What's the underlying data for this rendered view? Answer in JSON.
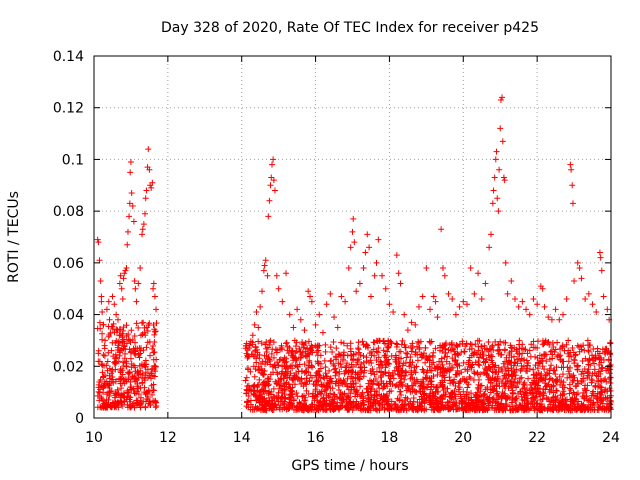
{
  "chart_data": {
    "type": "scatter",
    "title": "Day 328 of 2020, Rate Of TEC Index for receiver p425",
    "xlabel": "GPS time / hours",
    "ylabel": "ROTI / TECUs",
    "xlim": [
      10,
      24
    ],
    "ylim": [
      0,
      0.14
    ],
    "xticks": [
      "10",
      "12",
      "14",
      "16",
      "18",
      "20",
      "22",
      "24"
    ],
    "yticks": [
      "0",
      "0.02",
      "0.04",
      "0.06",
      "0.08",
      "0.1",
      "0.12",
      "0.14"
    ],
    "grid": true,
    "marker": "+",
    "color": "#ff0000",
    "series": [
      {
        "name": "p425",
        "points": [
          [
            10.1,
            0.069
          ],
          [
            10.12,
            0.068
          ],
          [
            10.15,
            0.061
          ],
          [
            10.18,
            0.053
          ],
          [
            10.2,
            0.047
          ],
          [
            10.2,
            0.045
          ],
          [
            10.22,
            0.041
          ],
          [
            10.25,
            0.036
          ],
          [
            10.3,
            0.03
          ],
          [
            10.35,
            0.042
          ],
          [
            10.4,
            0.045
          ],
          [
            10.42,
            0.038
          ],
          [
            10.5,
            0.047
          ],
          [
            10.55,
            0.044
          ],
          [
            10.6,
            0.04
          ],
          [
            10.65,
            0.038
          ],
          [
            10.7,
            0.052
          ],
          [
            10.72,
            0.055
          ],
          [
            10.75,
            0.05
          ],
          [
            10.78,
            0.046
          ],
          [
            10.8,
            0.054
          ],
          [
            10.82,
            0.056
          ],
          [
            10.85,
            0.057
          ],
          [
            10.88,
            0.058
          ],
          [
            10.9,
            0.067
          ],
          [
            10.92,
            0.072
          ],
          [
            10.95,
            0.078
          ],
          [
            10.97,
            0.083
          ],
          [
            10.98,
            0.095
          ],
          [
            11.0,
            0.099
          ],
          [
            11.02,
            0.087
          ],
          [
            11.05,
            0.082
          ],
          [
            11.08,
            0.076
          ],
          [
            11.1,
            0.053
          ],
          [
            11.12,
            0.05
          ],
          [
            11.15,
            0.045
          ],
          [
            11.2,
            0.052
          ],
          [
            11.25,
            0.058
          ],
          [
            11.3,
            0.071
          ],
          [
            11.32,
            0.073
          ],
          [
            11.35,
            0.075
          ],
          [
            11.38,
            0.079
          ],
          [
            11.4,
            0.085
          ],
          [
            11.42,
            0.088
          ],
          [
            11.45,
            0.097
          ],
          [
            11.47,
            0.104
          ],
          [
            11.5,
            0.096
          ],
          [
            11.52,
            0.09
          ],
          [
            11.55,
            0.089
          ],
          [
            11.58,
            0.091
          ],
          [
            11.6,
            0.05
          ],
          [
            11.62,
            0.052
          ],
          [
            11.65,
            0.047
          ],
          [
            11.68,
            0.042
          ],
          [
            14.2,
            0.028
          ],
          [
            14.3,
            0.032
          ],
          [
            14.35,
            0.036
          ],
          [
            14.4,
            0.041
          ],
          [
            14.45,
            0.035
          ],
          [
            14.5,
            0.043
          ],
          [
            14.55,
            0.049
          ],
          [
            14.6,
            0.057
          ],
          [
            14.62,
            0.059
          ],
          [
            14.65,
            0.061
          ],
          [
            14.7,
            0.055
          ],
          [
            14.72,
            0.078
          ],
          [
            14.75,
            0.084
          ],
          [
            14.78,
            0.09
          ],
          [
            14.8,
            0.093
          ],
          [
            14.82,
            0.098
          ],
          [
            14.85,
            0.1
          ],
          [
            14.87,
            0.092
          ],
          [
            14.9,
            0.088
          ],
          [
            14.95,
            0.055
          ],
          [
            15.0,
            0.05
          ],
          [
            15.1,
            0.045
          ],
          [
            15.2,
            0.056
          ],
          [
            15.3,
            0.04
          ],
          [
            15.4,
            0.035
          ],
          [
            15.5,
            0.042
          ],
          [
            15.6,
            0.038
          ],
          [
            15.7,
            0.034
          ],
          [
            15.8,
            0.049
          ],
          [
            15.85,
            0.047
          ],
          [
            15.9,
            0.045
          ],
          [
            16.0,
            0.036
          ],
          [
            16.1,
            0.04
          ],
          [
            16.2,
            0.033
          ],
          [
            16.3,
            0.044
          ],
          [
            16.4,
            0.048
          ],
          [
            16.5,
            0.039
          ],
          [
            16.6,
            0.035
          ],
          [
            16.7,
            0.047
          ],
          [
            16.8,
            0.045
          ],
          [
            16.9,
            0.058
          ],
          [
            16.95,
            0.066
          ],
          [
            17.0,
            0.072
          ],
          [
            17.02,
            0.077
          ],
          [
            17.05,
            0.068
          ],
          [
            17.1,
            0.049
          ],
          [
            17.2,
            0.052
          ],
          [
            17.3,
            0.058
          ],
          [
            17.35,
            0.064
          ],
          [
            17.4,
            0.071
          ],
          [
            17.45,
            0.066
          ],
          [
            17.5,
            0.047
          ],
          [
            17.6,
            0.055
          ],
          [
            17.65,
            0.06
          ],
          [
            17.7,
            0.069
          ],
          [
            17.8,
            0.055
          ],
          [
            17.9,
            0.05
          ],
          [
            18.0,
            0.044
          ],
          [
            18.1,
            0.041
          ],
          [
            18.2,
            0.063
          ],
          [
            18.25,
            0.056
          ],
          [
            18.3,
            0.052
          ],
          [
            18.4,
            0.04
          ],
          [
            18.5,
            0.034
          ],
          [
            18.6,
            0.037
          ],
          [
            18.7,
            0.036
          ],
          [
            18.8,
            0.043
          ],
          [
            18.9,
            0.047
          ],
          [
            19.0,
            0.058
          ],
          [
            19.1,
            0.042
          ],
          [
            19.2,
            0.047
          ],
          [
            19.25,
            0.045
          ],
          [
            19.3,
            0.039
          ],
          [
            19.4,
            0.073
          ],
          [
            19.45,
            0.058
          ],
          [
            19.5,
            0.055
          ],
          [
            19.6,
            0.048
          ],
          [
            19.7,
            0.046
          ],
          [
            19.8,
            0.04
          ],
          [
            19.9,
            0.043
          ],
          [
            20.0,
            0.045
          ],
          [
            20.1,
            0.044
          ],
          [
            20.2,
            0.058
          ],
          [
            20.3,
            0.048
          ],
          [
            20.4,
            0.056
          ],
          [
            20.5,
            0.046
          ],
          [
            20.6,
            0.052
          ],
          [
            20.7,
            0.066
          ],
          [
            20.75,
            0.071
          ],
          [
            20.8,
            0.083
          ],
          [
            20.82,
            0.088
          ],
          [
            20.85,
            0.093
          ],
          [
            20.88,
            0.1
          ],
          [
            20.9,
            0.103
          ],
          [
            20.92,
            0.085
          ],
          [
            20.95,
            0.08
          ],
          [
            20.97,
            0.096
          ],
          [
            21.0,
            0.112
          ],
          [
            21.02,
            0.123
          ],
          [
            21.05,
            0.124
          ],
          [
            21.07,
            0.107
          ],
          [
            21.1,
            0.093
          ],
          [
            21.12,
            0.092
          ],
          [
            21.15,
            0.06
          ],
          [
            21.2,
            0.048
          ],
          [
            21.3,
            0.053
          ],
          [
            21.4,
            0.046
          ],
          [
            21.5,
            0.043
          ],
          [
            21.6,
            0.045
          ],
          [
            21.7,
            0.042
          ],
          [
            21.8,
            0.04
          ],
          [
            21.9,
            0.046
          ],
          [
            22.0,
            0.044
          ],
          [
            22.1,
            0.051
          ],
          [
            22.15,
            0.05
          ],
          [
            22.2,
            0.043
          ],
          [
            22.3,
            0.039
          ],
          [
            22.4,
            0.038
          ],
          [
            22.5,
            0.042
          ],
          [
            22.6,
            0.038
          ],
          [
            22.7,
            0.04
          ],
          [
            22.8,
            0.046
          ],
          [
            22.9,
            0.098
          ],
          [
            22.92,
            0.096
          ],
          [
            22.95,
            0.09
          ],
          [
            22.97,
            0.083
          ],
          [
            23.0,
            0.053
          ],
          [
            23.1,
            0.06
          ],
          [
            23.15,
            0.058
          ],
          [
            23.2,
            0.054
          ],
          [
            23.3,
            0.046
          ],
          [
            23.4,
            0.048
          ],
          [
            23.5,
            0.044
          ],
          [
            23.6,
            0.041
          ],
          [
            23.7,
            0.064
          ],
          [
            23.72,
            0.062
          ],
          [
            23.75,
            0.057
          ],
          [
            23.8,
            0.047
          ],
          [
            23.9,
            0.042
          ],
          [
            23.95,
            0.038
          ]
        ],
        "baseline_band": [
          {
            "x": [
              10.1,
              11.7
            ],
            "ylow": 0.004,
            "yhigh": 0.037
          },
          {
            "x": [
              14.1,
              24.0
            ],
            "ylow": 0.003,
            "yhigh": 0.03
          }
        ]
      }
    ]
  }
}
